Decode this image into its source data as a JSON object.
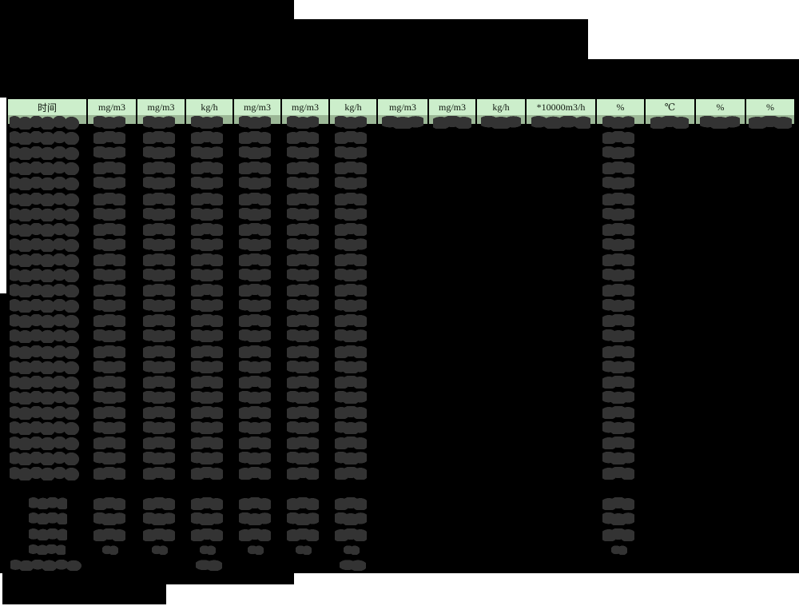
{
  "header": {
    "columns": [
      {
        "label": "时间"
      },
      {
        "label": "mg/m3"
      },
      {
        "label": "mg/m3"
      },
      {
        "label": "kg/h"
      },
      {
        "label": "mg/m3"
      },
      {
        "label": "mg/m3"
      },
      {
        "label": "kg/h"
      },
      {
        "label": "mg/m3"
      },
      {
        "label": "mg/m3"
      },
      {
        "label": "kg/h"
      },
      {
        "label": "*10000m3/h"
      },
      {
        "label": "%"
      },
      {
        "label": "℃"
      },
      {
        "label": "%"
      },
      {
        "label": "%"
      }
    ]
  },
  "table": {
    "redacted": true,
    "main_row_count": 24,
    "summary_row_count": 4,
    "footer_row_count": 1,
    "columns_with_values_all_rows": [
      0,
      1,
      2,
      3,
      4,
      5,
      6,
      11
    ],
    "columns_with_values_first_row_only": [
      7,
      8,
      9,
      10,
      12,
      13,
      14
    ],
    "footer_value_columns": [
      3,
      6
    ]
  },
  "colors": {
    "header_fill": "#cceecb",
    "subheader_fill": "#9cb897",
    "redaction_black": "#000000",
    "redaction_text_gray": "#333333",
    "page_background": "#ffffff"
  }
}
